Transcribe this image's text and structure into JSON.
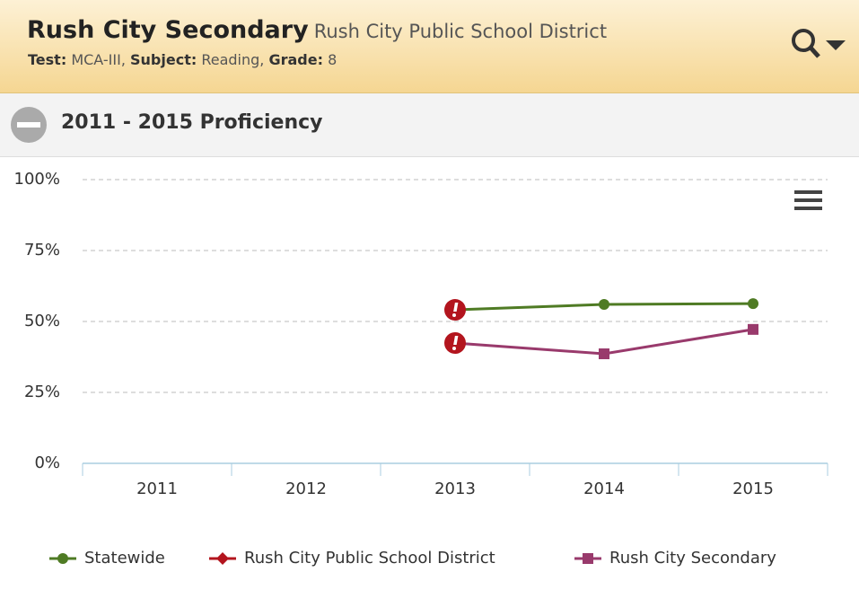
{
  "header": {
    "title": "Rush City Secondary",
    "subtitle": "Rush City Public School District",
    "details": [
      {
        "label": "Test:",
        "value": "MCA-III,"
      },
      {
        "label": "Subject:",
        "value": "Reading,"
      },
      {
        "label": "Grade:",
        "value": "8"
      }
    ]
  },
  "section": {
    "title": "2011 - 2015 Proficiency"
  },
  "chart_data": {
    "type": "line",
    "categories": [
      "2011",
      "2012",
      "2013",
      "2014",
      "2015"
    ],
    "series": [
      {
        "name": "Statewide",
        "color": "#4f7b24",
        "marker": "circle",
        "values": [
          null,
          null,
          54.1,
          56,
          56.3
        ],
        "flags": [
          false,
          false,
          true,
          false,
          false
        ]
      },
      {
        "name": "Rush City Public School District",
        "color": "#b3151e",
        "marker": "diamond",
        "values": [
          null,
          null,
          null,
          null,
          null
        ],
        "flags": [
          false,
          false,
          false,
          false,
          false
        ]
      },
      {
        "name": "Rush City Secondary",
        "color": "#993a6c",
        "marker": "square",
        "values": [
          null,
          null,
          42.4,
          38.6,
          47.2
        ],
        "flags": [
          false,
          false,
          true,
          false,
          false
        ]
      }
    ],
    "ylim": [
      0,
      100
    ],
    "yticks": [
      {
        "value": 0,
        "label": "0%"
      },
      {
        "value": 25,
        "label": "25%"
      },
      {
        "value": 50,
        "label": "50%"
      },
      {
        "value": 75,
        "label": "75%"
      },
      {
        "value": 100,
        "label": "100%"
      }
    ],
    "grid": true,
    "legend": "bottom",
    "flag_color": "#b3151e"
  }
}
